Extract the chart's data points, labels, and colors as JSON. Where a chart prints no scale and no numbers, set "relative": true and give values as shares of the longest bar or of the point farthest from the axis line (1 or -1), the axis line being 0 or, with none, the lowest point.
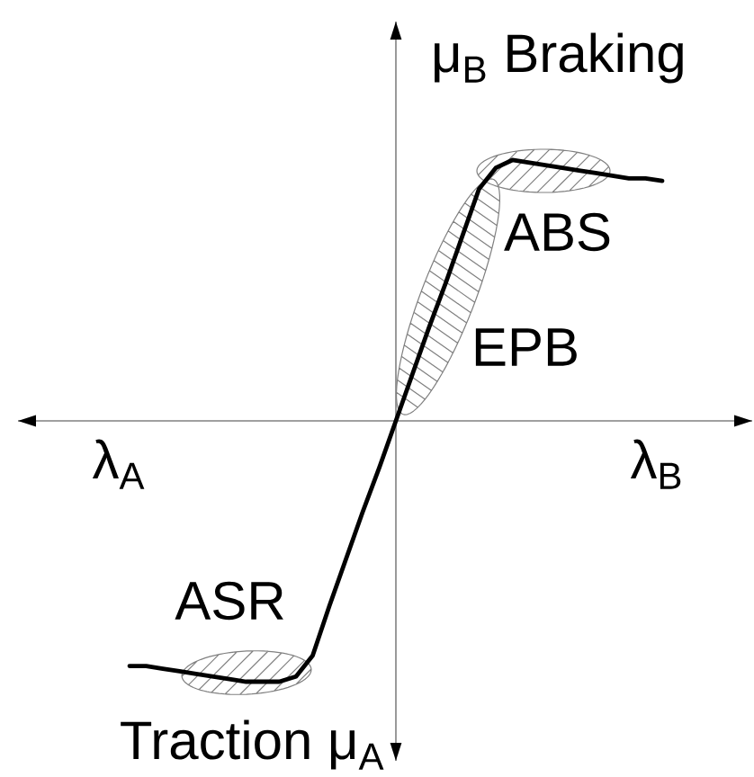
{
  "chart_data": {
    "type": "line",
    "relative": true,
    "categories": [
      null,
      null,
      null,
      null,
      null,
      null,
      null,
      null,
      null,
      null,
      null,
      null,
      null,
      null,
      null,
      null,
      null,
      null,
      null,
      null,
      null,
      null,
      null,
      null,
      null,
      null,
      null,
      null,
      null,
      null,
      null,
      null,
      null
    ],
    "values": [
      -0.94,
      -0.94,
      -0.95,
      -0.96,
      -0.97,
      -0.98,
      -0.99,
      -1.0,
      -1.0,
      -1.0,
      -0.98,
      -0.9,
      -0.71,
      -0.53,
      -0.35,
      -0.18,
      0,
      0.18,
      0.36,
      0.53,
      0.71,
      0.89,
      0.97,
      1.0,
      0.99,
      0.98,
      0.97,
      0.96,
      0.95,
      0.94,
      0.93,
      0.93,
      0.92
    ],
    "color": "#000000",
    "xlabel": "λ$_{B}$",
    "ylabel": "μ$_{B}$ Braking",
    "annotations": [
      "λ$_{A}$",
      "Traction μ$_{A}$",
      "ABS",
      "EPB",
      "ASR"
    ]
  }
}
